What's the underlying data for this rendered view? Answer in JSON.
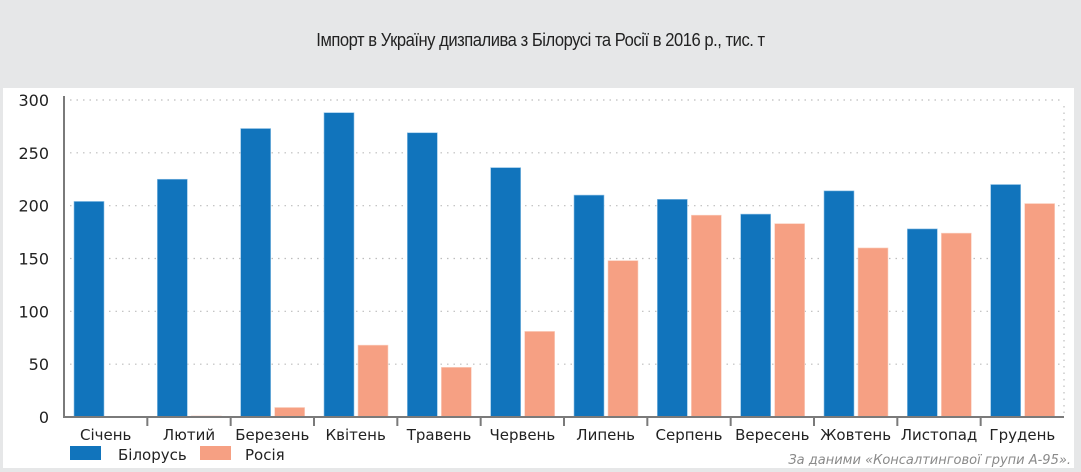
{
  "chart_data": {
    "type": "bar",
    "title": "Імпорт в Україну дизпалива з Білорусі та Росії в 2016 р., тис. т",
    "xlabel": "",
    "ylabel": "",
    "ylim": [
      0,
      300
    ],
    "yticks": [
      0,
      50,
      100,
      150,
      200,
      250,
      300
    ],
    "ytick_labels": [
      "0",
      "50",
      "100",
      "150",
      "200",
      "250",
      "300"
    ],
    "grid": true,
    "legend_position": "bottom-left",
    "categories": [
      "Січень",
      "Лютий",
      "Березень",
      "Квітень",
      "Травень",
      "Червень",
      "Липень",
      "Серпень",
      "Вересень",
      "Жовтень",
      "Листопад",
      "Грудень"
    ],
    "series": [
      {
        "name": "Білорусь",
        "color": "#1174bc",
        "values": [
          204,
          225,
          273,
          288,
          269,
          236,
          210,
          206,
          192,
          214,
          178,
          220
        ]
      },
      {
        "name": "Росія",
        "color": "#f6a083",
        "values": [
          0,
          1,
          9,
          68,
          47,
          81,
          148,
          191,
          183,
          160,
          174,
          202
        ]
      }
    ],
    "source": "За даними «Консалтингової групи А-95»."
  }
}
